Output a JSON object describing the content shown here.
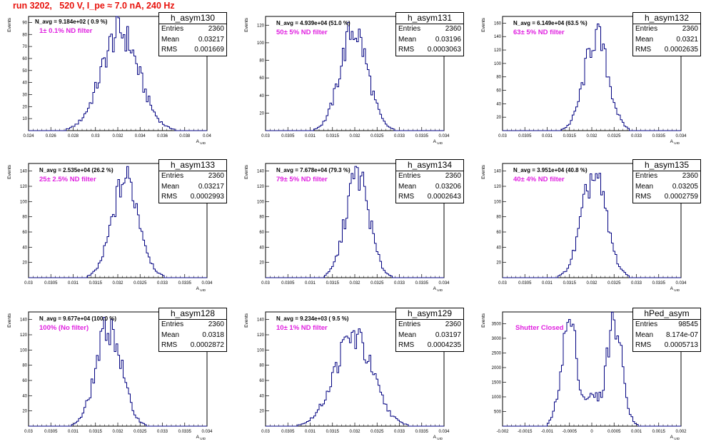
{
  "title": "run 3202,   520 V, I_pe ≈ 7.0 nA, 240 Hz",
  "chart_data": [
    {
      "type": "histogram",
      "name": "h_asym130",
      "stats": {
        "entries": "2360",
        "mean": "0.03217",
        "rms": "0.001669"
      },
      "n_avg": "N_avg = 9.184e+02 ( 0.9 %)",
      "filter": "1± 0.1% ND filter",
      "xlabel": "A_UID",
      "ylabel": "Events",
      "xlim": [
        0.024,
        0.04
      ],
      "ylim": [
        0,
        95
      ],
      "xticks": [
        "0.024",
        "0.026",
        "0.028",
        "0.03",
        "0.032",
        "0.034",
        "0.036",
        "0.038",
        "0.04"
      ],
      "yticks": [
        10,
        20,
        30,
        40,
        50,
        60,
        70,
        80,
        90
      ],
      "mu": 0.0322,
      "sigma": 0.00167,
      "peak": 82
    },
    {
      "type": "histogram",
      "name": "h_asym131",
      "stats": {
        "entries": "2360",
        "mean": "0.03196",
        "rms": "0.0003063"
      },
      "n_avg": "N_avg = 4.939e+04 (51.0 %)",
      "filter": "50± 5% ND filter",
      "xlabel": "A_UID",
      "ylabel": "Events",
      "xlim": [
        0.03,
        0.034
      ],
      "ylim": [
        0,
        130
      ],
      "xticks": [
        "0.03",
        "0.0305",
        "0.031",
        "0.0315",
        "0.032",
        "0.0325",
        "0.033",
        "0.0335",
        "0.034"
      ],
      "yticks": [
        20,
        40,
        60,
        80,
        100,
        120
      ],
      "mu": 0.03198,
      "sigma": 0.000306,
      "peak": 115
    },
    {
      "type": "histogram",
      "name": "h_asym132",
      "stats": {
        "entries": "2360",
        "mean": "0.0321",
        "rms": "0.0002635"
      },
      "n_avg": "N_avg = 6.149e+04 (63.5 %)",
      "filter": "63± 5% ND filter",
      "xlabel": "A_UID",
      "ylabel": "Events",
      "xlim": [
        0.03,
        0.034
      ],
      "ylim": [
        0,
        170
      ],
      "xticks": [
        "0.03",
        "0.0305",
        "0.031",
        "0.0315",
        "0.032",
        "0.0325",
        "0.033",
        "0.0335",
        "0.034"
      ],
      "yticks": [
        20,
        40,
        60,
        80,
        100,
        120,
        140,
        160
      ],
      "mu": 0.0321,
      "sigma": 0.000264,
      "peak": 140
    },
    {
      "type": "histogram",
      "name": "h_asym133",
      "stats": {
        "entries": "2360",
        "mean": "0.03217",
        "rms": "0.0002993"
      },
      "n_avg": "N_avg = 2.535e+04 (26.2 %)",
      "filter": "25± 2.5% ND filter",
      "xlabel": "A_UID",
      "ylabel": "Events",
      "xlim": [
        0.03,
        0.034
      ],
      "ylim": [
        0,
        150
      ],
      "xticks": [
        "0.03",
        "0.0305",
        "0.031",
        "0.0315",
        "0.032",
        "0.0325",
        "0.033",
        "0.0335",
        "0.034"
      ],
      "yticks": [
        20,
        40,
        60,
        80,
        100,
        120,
        140
      ],
      "mu": 0.03218,
      "sigma": 0.000299,
      "peak": 130
    },
    {
      "type": "histogram",
      "name": "h_asym134",
      "stats": {
        "entries": "2360",
        "mean": "0.03206",
        "rms": "0.0002643"
      },
      "n_avg": "N_avg = 7.678e+04 (79.3 %)",
      "filter": "79± 5% ND filter",
      "xlabel": "A_UID",
      "ylabel": "Events",
      "xlim": [
        0.03,
        0.034
      ],
      "ylim": [
        0,
        150
      ],
      "xticks": [
        "0.03",
        "0.0305",
        "0.031",
        "0.0315",
        "0.032",
        "0.0325",
        "0.033",
        "0.0335",
        "0.034"
      ],
      "yticks": [
        20,
        40,
        60,
        80,
        100,
        120,
        140
      ],
      "mu": 0.03206,
      "sigma": 0.000264,
      "peak": 135
    },
    {
      "type": "histogram",
      "name": "h_asym135",
      "stats": {
        "entries": "2360",
        "mean": "0.03205",
        "rms": "0.0002759"
      },
      "n_avg": "N_avg = 3.951e+04 (40.8 %)",
      "filter": "40± 4% ND filter",
      "xlabel": "A_UID",
      "ylabel": "Events",
      "xlim": [
        0.03,
        0.034
      ],
      "ylim": [
        0,
        150
      ],
      "xticks": [
        "0.03",
        "0.0305",
        "0.031",
        "0.0315",
        "0.032",
        "0.0325",
        "0.033",
        "0.0335",
        "0.034"
      ],
      "yticks": [
        20,
        40,
        60,
        80,
        100,
        120,
        140
      ],
      "mu": 0.03205,
      "sigma": 0.000276,
      "peak": 133
    },
    {
      "type": "histogram",
      "name": "h_asym128",
      "stats": {
        "entries": "2360",
        "mean": "0.0318",
        "rms": "0.0002872"
      },
      "n_avg": "N_avg = 9.677e+04 (100.0 %)",
      "filter": "100% (No filter)",
      "xlabel": "A_UID",
      "ylabel": "Events",
      "xlim": [
        0.03,
        0.034
      ],
      "ylim": [
        0,
        150
      ],
      "xticks": [
        "0.03",
        "0.0305",
        "0.031",
        "0.0315",
        "0.032",
        "0.0325",
        "0.033",
        "0.0335",
        "0.034"
      ],
      "yticks": [
        20,
        40,
        60,
        80,
        100,
        120,
        140
      ],
      "mu": 0.0318,
      "sigma": 0.000287,
      "peak": 130
    },
    {
      "type": "histogram",
      "name": "h_asym129",
      "stats": {
        "entries": "2360",
        "mean": "0.03197",
        "rms": "0.0004235"
      },
      "n_avg": "N_avg = 9.234e+03 ( 9.5 %)",
      "filter": "10± 1% ND filter",
      "xlabel": "A_UID",
      "ylabel": "Events",
      "xlim": [
        0.03,
        0.034
      ],
      "ylim": [
        0,
        150
      ],
      "xticks": [
        "0.03",
        "0.0305",
        "0.031",
        "0.0315",
        "0.032",
        "0.0325",
        "0.033",
        "0.0335",
        "0.034"
      ],
      "yticks": [
        20,
        40,
        60,
        80,
        100,
        120,
        140
      ],
      "mu": 0.03197,
      "sigma": 0.000424,
      "peak": 118
    },
    {
      "type": "histogram",
      "name": "hPed_asym",
      "stats": {
        "entries": "98545",
        "mean": "8.174e-07",
        "rms": "0.0005713"
      },
      "n_avg": "",
      "filter": "Shutter Closed",
      "xlabel": "A_UID",
      "ylabel": "Events",
      "xlim": [
        -0.002,
        0.002
      ],
      "ylim": [
        0,
        3900
      ],
      "xticks": [
        "-0.002",
        "-0.0015",
        "-0.001",
        "-0.0005",
        "0",
        "0.0005",
        "0.001",
        "0.0015",
        "0.002"
      ],
      "yticks": [
        500,
        1000,
        1500,
        2000,
        2500,
        3000,
        3500
      ],
      "bimodal": [
        -0.0005,
        0.0005
      ],
      "sigma": 0.00018,
      "peak": 3550,
      "valley": 1000
    }
  ],
  "colors": {
    "title": "#e8120c",
    "filter_label": "#e020e0",
    "histogram_line": "#000080"
  }
}
